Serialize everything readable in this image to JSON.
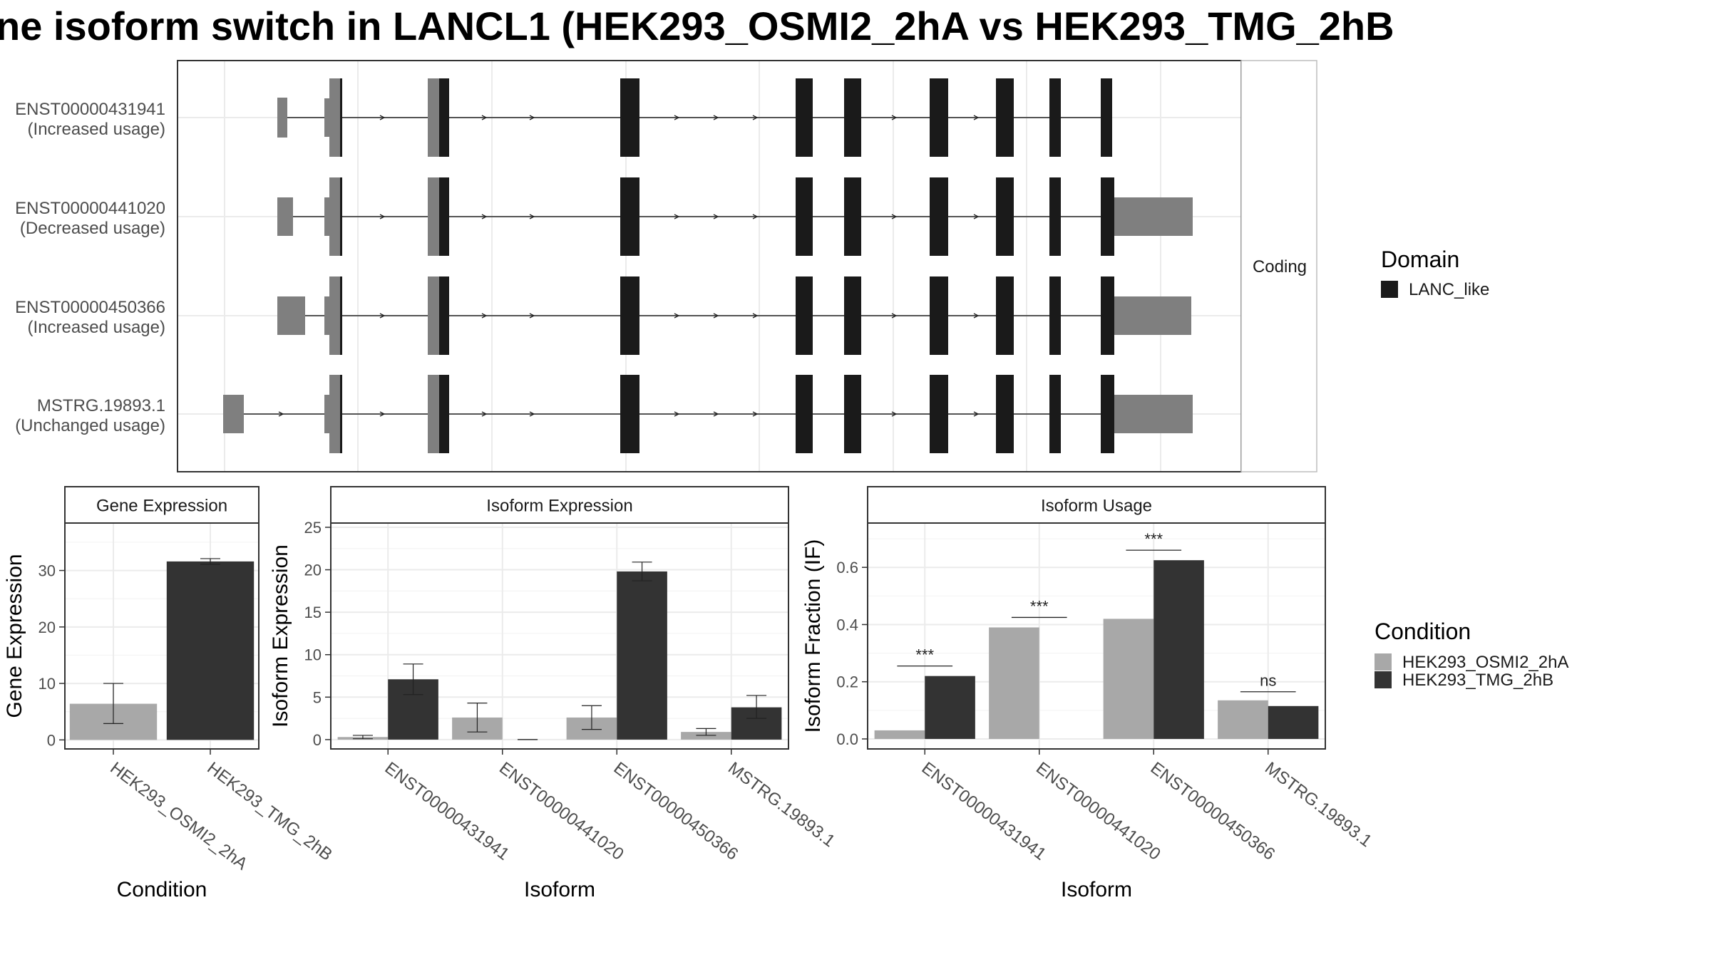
{
  "title": "ne isoform switch in LANCL1 (HEK293_OSMI2_2hA vs HEK293_TMG_2hB",
  "colors": {
    "condA": "#a8a8a8",
    "condB": "#333333",
    "domain": "#1a1a1a",
    "utr": "#7f7f7f",
    "grid": "#ebebeb",
    "strip": "#ffffff",
    "border": "#333333"
  },
  "chart_data": [
    {
      "type": "gene-structure",
      "facet_label": "Coding",
      "isoforms": [
        {
          "id": "ENST00000431941",
          "usage": "(Increased usage)"
        },
        {
          "id": "ENST00000441020",
          "usage": "(Decreased usage)"
        },
        {
          "id": "ENST00000450366",
          "usage": "(Increased usage)"
        },
        {
          "id": "MSTRG.19893.1",
          "usage": "(Unchanged usage)"
        }
      ],
      "legend": {
        "title": "Domain",
        "entries": [
          "LANC_like"
        ]
      }
    },
    {
      "type": "bar",
      "strip_title": "Gene Expression",
      "xlabel": "Condition",
      "ylabel": "Gene Expression",
      "categories": [
        "HEK293_OSMI2_2hA",
        "HEK293_TMG_2hB"
      ],
      "values": [
        6.4,
        31.6
      ],
      "errors": [
        [
          2.9,
          10.0
        ],
        [
          31.1,
          32.1
        ]
      ],
      "ylim": [
        -1.6,
        38.4
      ],
      "yticks": [
        0,
        10,
        20,
        30
      ]
    },
    {
      "type": "bar",
      "strip_title": "Isoform Expression",
      "xlabel": "Isoform",
      "ylabel": "Isoform Expression",
      "categories": [
        "ENST00000431941",
        "ENST00000441020",
        "ENST00000450366",
        "MSTRG.19893.1"
      ],
      "series": [
        {
          "name": "HEK293_OSMI2_2hA",
          "values": [
            0.3,
            2.6,
            2.6,
            0.9
          ],
          "errors": [
            [
              0.1,
              0.5
            ],
            [
              0.9,
              4.3
            ],
            [
              1.2,
              4.0
            ],
            [
              0.5,
              1.3
            ]
          ]
        },
        {
          "name": "HEK293_TMG_2hB",
          "values": [
            7.1,
            0.0,
            19.8,
            3.8
          ],
          "errors": [
            [
              5.3,
              8.9
            ],
            [
              0.0,
              0.0
            ],
            [
              18.7,
              20.9
            ],
            [
              2.5,
              5.2
            ]
          ]
        }
      ],
      "ylim": [
        -1.1,
        25.5
      ],
      "yticks": [
        0,
        5,
        10,
        15,
        20,
        25
      ]
    },
    {
      "type": "bar",
      "strip_title": "Isoform Usage",
      "xlabel": "Isoform",
      "ylabel": "Isoform Fraction (IF)",
      "categories": [
        "ENST00000431941",
        "ENST00000441020",
        "ENST00000450366",
        "MSTRG.19893.1"
      ],
      "series": [
        {
          "name": "HEK293_OSMI2_2hA",
          "values": [
            0.03,
            0.39,
            0.42,
            0.135
          ]
        },
        {
          "name": "HEK293_TMG_2hB",
          "values": [
            0.22,
            0.0,
            0.625,
            0.115
          ]
        }
      ],
      "significance": [
        "***",
        "***",
        "***",
        "ns"
      ],
      "significance_level": [
        0.255,
        0.425,
        0.66,
        0.165
      ],
      "ylim": [
        -0.035,
        0.755
      ],
      "yticks": [
        "0.0",
        "0.2",
        "0.4",
        "0.6"
      ]
    }
  ],
  "condition_legend": {
    "title": "Condition",
    "entries": [
      "HEK293_OSMI2_2hA",
      "HEK293_TMG_2hB"
    ]
  }
}
